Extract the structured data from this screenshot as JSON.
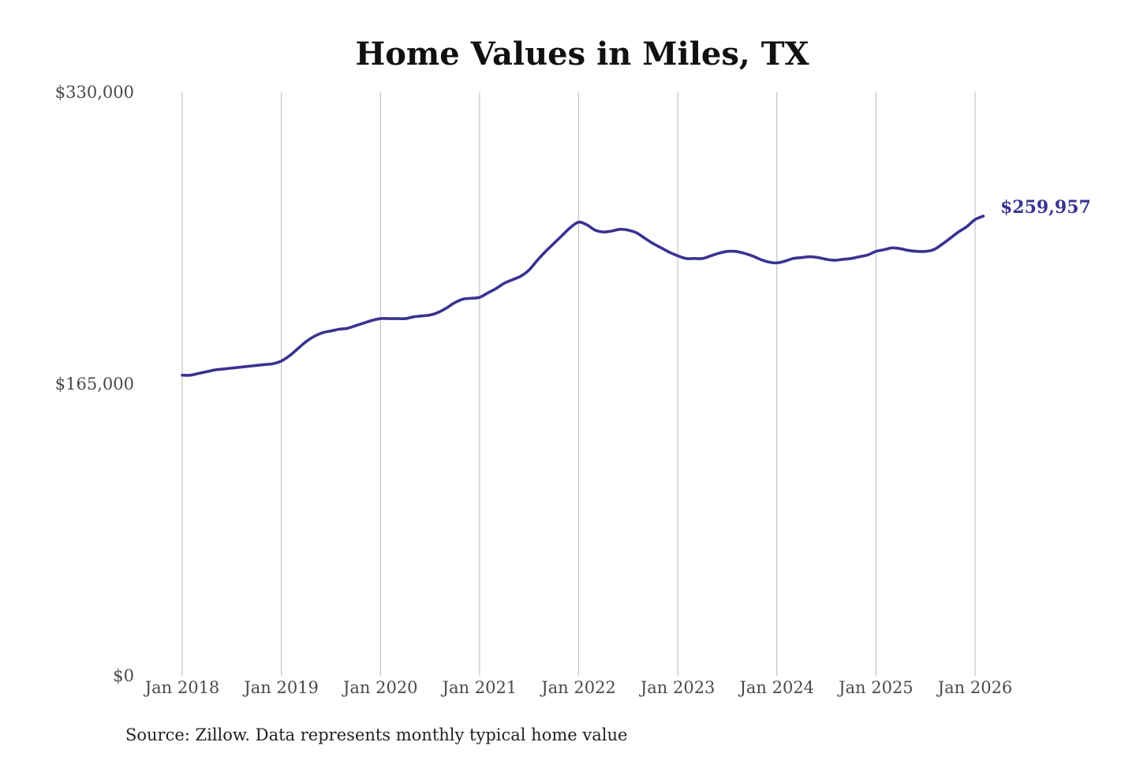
{
  "chart_data": {
    "type": "line",
    "title": "Home Values in Miles, TX",
    "xlabel": "",
    "ylabel": "",
    "ylim": [
      0,
      330000
    ],
    "y_ticks": [
      "$330,000",
      "$165,000",
      "$0"
    ],
    "y_tick_values": [
      330000,
      165000,
      0
    ],
    "x_ticks": [
      "Jan 2018",
      "Jan 2019",
      "Jan 2020",
      "Jan 2021",
      "Jan 2022",
      "Jan 2023",
      "Jan 2024",
      "Jan 2025",
      "Jan 2026"
    ],
    "grid": "vertical",
    "legend": "none",
    "series": [
      {
        "color": "#3a3291",
        "x": [
          "2018-01",
          "2018-02",
          "2018-03",
          "2018-04",
          "2018-05",
          "2018-06",
          "2018-07",
          "2018-08",
          "2018-09",
          "2018-10",
          "2018-11",
          "2018-12",
          "2019-01",
          "2019-02",
          "2019-03",
          "2019-04",
          "2019-05",
          "2019-06",
          "2019-07",
          "2019-08",
          "2019-09",
          "2019-10",
          "2019-11",
          "2019-12",
          "2020-01",
          "2020-02",
          "2020-03",
          "2020-04",
          "2020-05",
          "2020-06",
          "2020-07",
          "2020-08",
          "2020-09",
          "2020-10",
          "2020-11",
          "2020-12",
          "2021-01",
          "2021-02",
          "2021-03",
          "2021-04",
          "2021-05",
          "2021-06",
          "2021-07",
          "2021-08",
          "2021-09",
          "2021-10",
          "2021-11",
          "2021-12",
          "2022-01",
          "2022-02",
          "2022-03",
          "2022-04",
          "2022-05",
          "2022-06",
          "2022-07",
          "2022-08",
          "2022-09",
          "2022-10",
          "2022-11",
          "2022-12",
          "2023-01",
          "2023-02",
          "2023-03",
          "2023-04",
          "2023-05",
          "2023-06",
          "2023-07",
          "2023-08",
          "2023-09",
          "2023-10",
          "2023-11",
          "2023-12",
          "2024-01",
          "2024-02",
          "2024-03",
          "2024-04",
          "2024-05",
          "2024-06",
          "2024-07",
          "2024-08",
          "2024-09",
          "2024-10",
          "2024-11",
          "2024-12",
          "2025-01",
          "2025-02",
          "2025-03",
          "2025-04",
          "2025-05",
          "2025-06",
          "2025-07",
          "2025-08",
          "2025-09",
          "2025-10",
          "2025-11",
          "2025-12",
          "2026-01",
          "2026-02"
        ],
        "values": [
          170000,
          170000,
          171000,
          172000,
          173000,
          173500,
          174000,
          174500,
          175000,
          175500,
          176000,
          176500,
          178000,
          181000,
          185000,
          189000,
          192000,
          194000,
          195000,
          196000,
          196500,
          198000,
          199500,
          201000,
          202000,
          202000,
          202000,
          202000,
          203000,
          203500,
          204000,
          205500,
          208000,
          211000,
          213000,
          213500,
          214000,
          216500,
          219000,
          222000,
          224000,
          226000,
          229500,
          235000,
          240000,
          244500,
          249000,
          253500,
          256500,
          255000,
          252000,
          251000,
          251500,
          252500,
          252000,
          250500,
          247500,
          244500,
          242000,
          239500,
          237500,
          236000,
          236000,
          236000,
          237500,
          239000,
          240000,
          240000,
          239000,
          237500,
          235500,
          234000,
          233500,
          234500,
          236000,
          236500,
          237000,
          236500,
          235500,
          235000,
          235500,
          236000,
          237000,
          238000,
          240000,
          241000,
          242000,
          241500,
          240500,
          240000,
          240000,
          241000,
          244000,
          247500,
          251000,
          254000,
          258000,
          259957
        ]
      }
    ],
    "end_label": "$259,957",
    "source_note": "Source: Zillow. Data represents monthly typical home value"
  }
}
